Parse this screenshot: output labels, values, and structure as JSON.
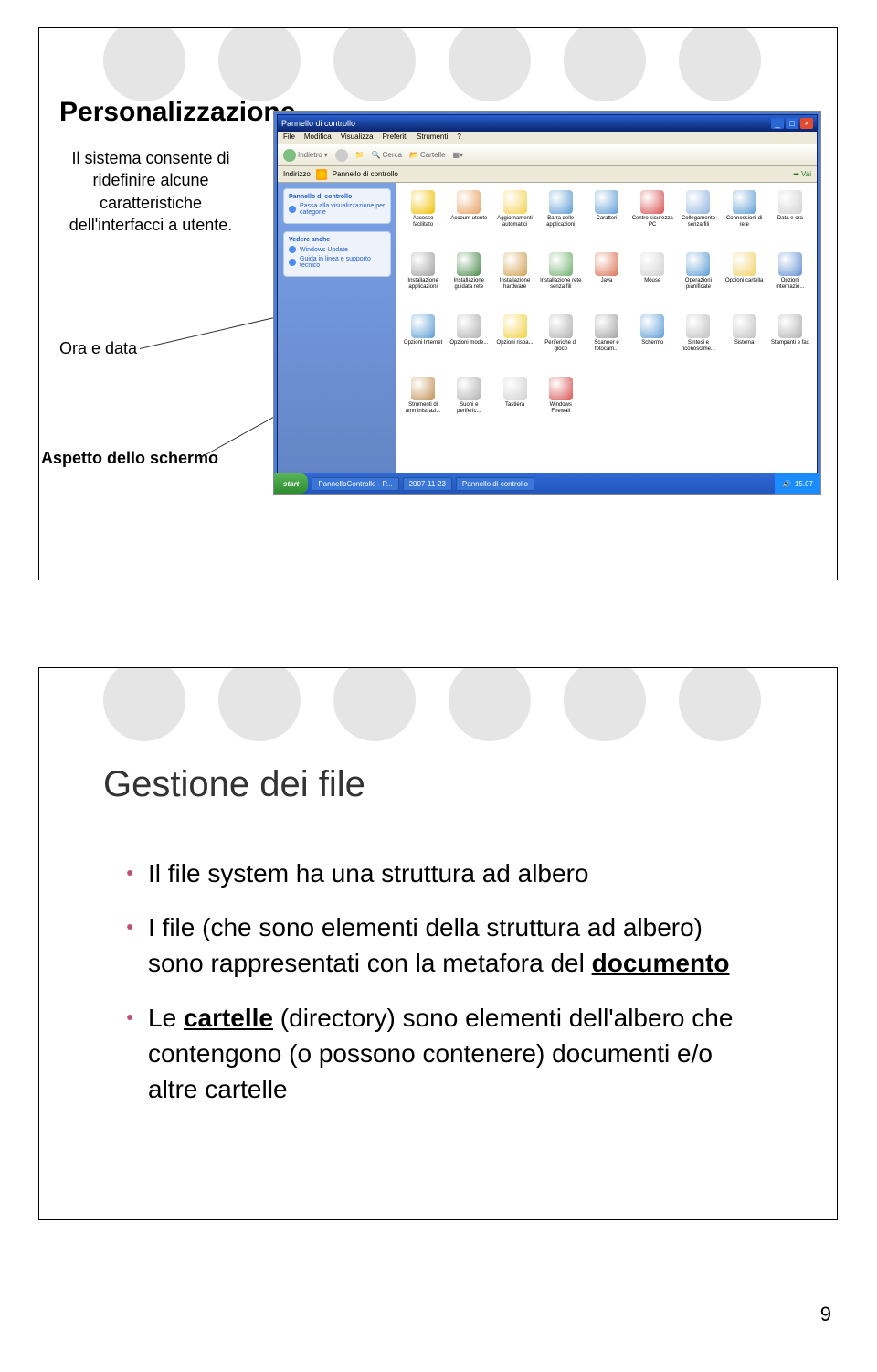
{
  "page_number": "9",
  "slide1": {
    "title": "Personalizzazione",
    "side_text": "Il sistema consente di ridefinire alcune caratteristiche dell'interfacci a utente.",
    "label_ora": "Ora e data",
    "label_aspetto": "Aspetto dello schermo",
    "circle_color": "#e5e5e5"
  },
  "screenshot": {
    "window_title": "Pannello di controllo",
    "menu": [
      "File",
      "Modifica",
      "Visualizza",
      "Preferiti",
      "Strumenti",
      "?"
    ],
    "toolbar": {
      "cerca": "Cerca",
      "cartelle": "Cartelle",
      "indietro": "Indietro"
    },
    "address_label": "Indirizzo",
    "address_value": "Pannello di controllo",
    "go": "Vai",
    "side_panels": [
      {
        "title": "Pannello di controllo",
        "items": [
          "Passa alla visualizzazione per categorie"
        ]
      },
      {
        "title": "Vedere anche",
        "items": [
          "Windows Update",
          "Guida in linea e supporto tecnico"
        ]
      }
    ],
    "icons": [
      {
        "label": "Accesso facilitato",
        "color": "#f0c000"
      },
      {
        "label": "Account utente",
        "color": "#e8a060"
      },
      {
        "label": "Aggiornamenti automatici",
        "color": "#f4d050"
      },
      {
        "label": "Barra delle applicazioni",
        "color": "#5a9bd4"
      },
      {
        "label": "Caratteri",
        "color": "#5a9bd4"
      },
      {
        "label": "Centro sicurezza PC",
        "color": "#d85050"
      },
      {
        "label": "Collegamento senza fili",
        "color": "#90b4e0"
      },
      {
        "label": "Connessioni di rete",
        "color": "#5a9bd4"
      },
      {
        "label": "Data e ora",
        "color": "#d0d0d0"
      },
      {
        "label": "Installazione applicazioni",
        "color": "#a0a0a0"
      },
      {
        "label": "Installazione guidata rete",
        "color": "#4a8a4a"
      },
      {
        "label": "Installazione hardware",
        "color": "#d0a050"
      },
      {
        "label": "Installazione rete senza fili",
        "color": "#70b070"
      },
      {
        "label": "Java",
        "color": "#d87050"
      },
      {
        "label": "Mouse",
        "color": "#d0d0d0"
      },
      {
        "label": "Operazioni pianificate",
        "color": "#5a9bd4"
      },
      {
        "label": "Opzioni cartella",
        "color": "#f0d060"
      },
      {
        "label": "Opzioni internazio...",
        "color": "#6090d0"
      },
      {
        "label": "Opzioni Internet",
        "color": "#5a9bd4"
      },
      {
        "label": "Opzioni mode...",
        "color": "#b0b0b0"
      },
      {
        "label": "Opzioni rispa...",
        "color": "#f0d040"
      },
      {
        "label": "Periferiche di gioco",
        "color": "#b0b0b0"
      },
      {
        "label": "Scanner e fotocam...",
        "color": "#a0a0a0"
      },
      {
        "label": "Schermo",
        "color": "#5a9bd4"
      },
      {
        "label": "Sintesi e riconoscime...",
        "color": "#c0c0c0"
      },
      {
        "label": "Sistema",
        "color": "#c0c0c0"
      },
      {
        "label": "Stampanti e fax",
        "color": "#b0b0b0"
      },
      {
        "label": "Strumenti di amministrazi...",
        "color": "#c09050"
      },
      {
        "label": "Suoni e periferic...",
        "color": "#b0b0b0"
      },
      {
        "label": "Tastiera",
        "color": "#d0d0d0"
      },
      {
        "label": "Windows Firewall",
        "color": "#d85050"
      }
    ],
    "taskbar": {
      "start": "start",
      "tasks": [
        "PannelloControllo - P...",
        "2007-11-23",
        "Pannello di controllo"
      ],
      "clock": "15.07"
    }
  },
  "slide2": {
    "title": "Gestione dei file",
    "bullets": [
      "Il file system ha una struttura ad albero",
      "I file (che sono elementi della struttura ad albero) sono rappresentati con la metafora del <b>documento</b>",
      "Le <b>cartelle</b> (directory) sono elementi dell'albero che contengono (o possono contenere) documenti e/o altre cartelle"
    ],
    "circle_color": "#e5e5e5",
    "bullet_color": "#c05070"
  }
}
